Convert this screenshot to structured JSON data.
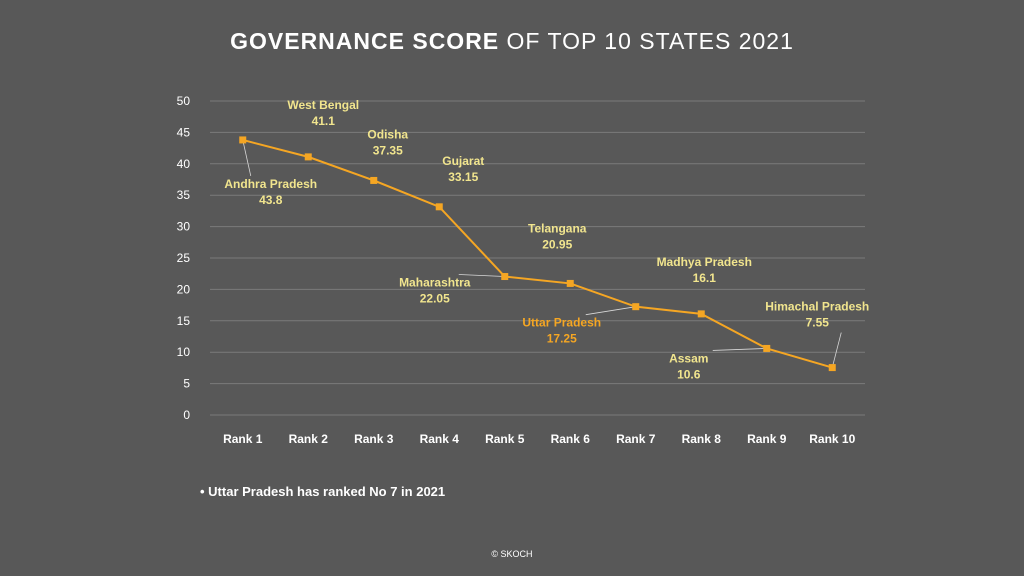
{
  "title": {
    "bold": "GOVERNANCE SCORE",
    "rest": " OF TOP 10 STATES 2021"
  },
  "note": "• Uttar Pradesh has ranked No 7 in 2021",
  "copyright": "© SKOCH",
  "colors": {
    "background": "#585858",
    "line": "#f5a623",
    "label": "#f1e58e",
    "highlight": "#f5a623",
    "grid": "#7a7a7a"
  },
  "chart_data": {
    "type": "line",
    "title": "GOVERNANCE SCORE OF TOP 10 STATES 2021",
    "categories": [
      "Rank 1",
      "Rank 2",
      "Rank 3",
      "Rank 4",
      "Rank 5",
      "Rank 6",
      "Rank 7",
      "Rank 8",
      "Rank 9",
      "Rank 10"
    ],
    "series": [
      {
        "values": [
          43.8,
          41.1,
          37.35,
          33.15,
          22.05,
          20.95,
          17.25,
          16.1,
          10.6,
          7.55
        ]
      }
    ],
    "points": [
      {
        "state": "Andhra Pradesh",
        "value_label": "43.8"
      },
      {
        "state": "West Bengal",
        "value_label": "41.1"
      },
      {
        "state": "Odisha",
        "value_label": "37.35"
      },
      {
        "state": "Gujarat",
        "value_label": "33.15"
      },
      {
        "state": "Maharashtra",
        "value_label": "22.05"
      },
      {
        "state": "Telangana",
        "value_label": "20.95"
      },
      {
        "state": "Uttar Pradesh",
        "value_label": "17.25",
        "highlight": true
      },
      {
        "state": "Madhya Pradesh",
        "value_label": "16.1"
      },
      {
        "state": "Assam",
        "value_label": "10.6"
      },
      {
        "state": "Himachal Pradesh",
        "value_label": "7.55"
      }
    ],
    "ylim": [
      0,
      50
    ],
    "yticks": [
      0,
      5,
      10,
      15,
      20,
      25,
      30,
      35,
      40,
      45,
      50
    ],
    "grid": true,
    "legend": "none"
  }
}
